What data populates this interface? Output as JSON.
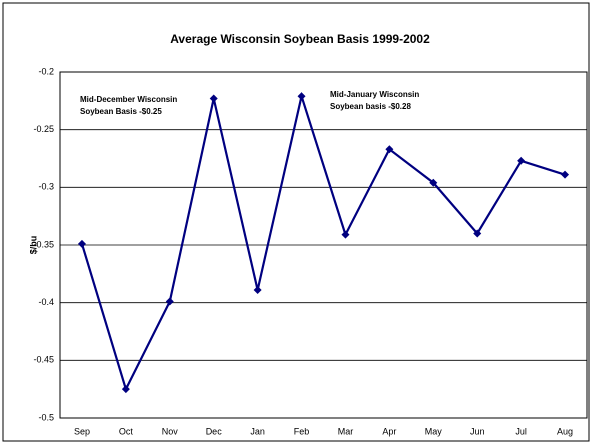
{
  "chart_data": {
    "type": "line",
    "title": "Average Wisconsin Soybean Basis 1999-2002",
    "y_label": "$/bu",
    "categories": [
      "Sep",
      "Oct",
      "Nov",
      "Dec",
      "Jan",
      "Feb",
      "Mar",
      "Apr",
      "May",
      "Jun",
      "Jul",
      "Aug"
    ],
    "series": [
      {
        "name": "Basis",
        "color": "#000080",
        "values": [
          -0.349,
          -0.475,
          -0.399,
          -0.223,
          -0.389,
          -0.221,
          -0.341,
          -0.267,
          -0.296,
          -0.34,
          -0.277,
          -0.289
        ]
      }
    ],
    "ylim": [
      -0.5,
      -0.2
    ],
    "yticks": [
      -0.5,
      -0.45,
      -0.4,
      -0.35,
      -0.3,
      -0.25,
      -0.2
    ],
    "grid": true,
    "annotations": [
      {
        "lines": [
          "Mid-December Wisconsin",
          "Soybean Basis  -$0.25"
        ]
      },
      {
        "lines": [
          "Mid-January Wisconsin",
          "Soybean basis -$0.28"
        ]
      }
    ]
  }
}
